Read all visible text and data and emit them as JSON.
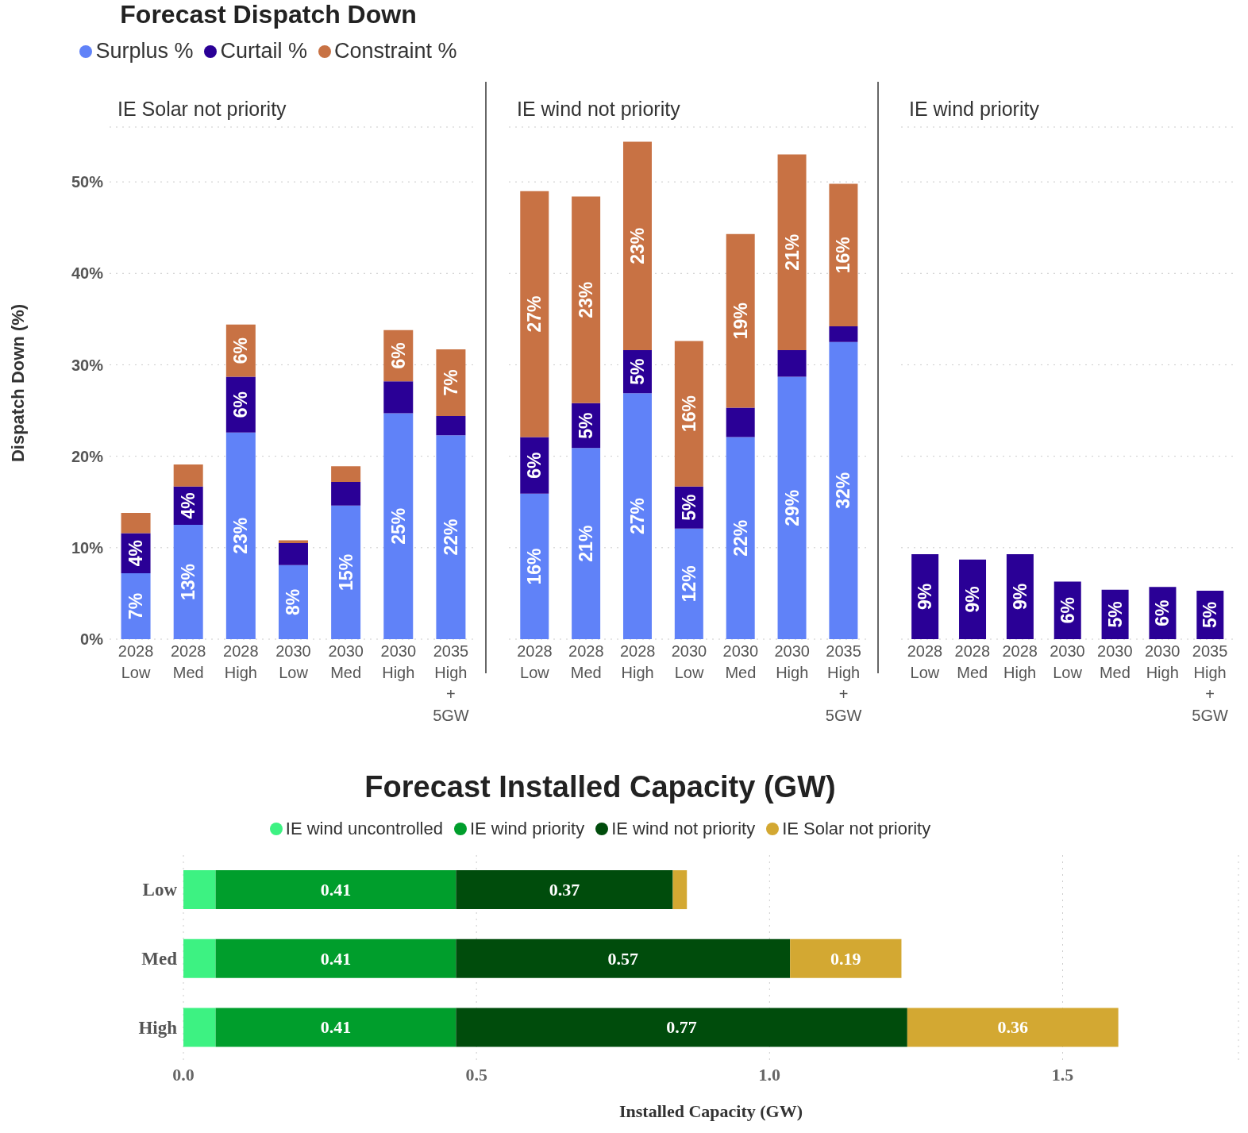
{
  "chart_data": [
    {
      "type": "bar",
      "title": "Forecast Dispatch Down",
      "subtitle": "IE Solar not priority",
      "ylabel": "Dispatch Down (%)",
      "stacked": true,
      "legend": "top",
      "grid": "y",
      "categories": [
        "2028 Low",
        "2028 Med",
        "2028 High",
        "2030 Low",
        "2030 Med",
        "2030 High",
        "2035 High + 5GW"
      ],
      "ylim": [
        0,
        56
      ],
      "yticks": [
        {
          "value": 0,
          "label": "0%"
        },
        {
          "value": 10,
          "label": "10%"
        },
        {
          "value": 20,
          "label": "20%"
        },
        {
          "value": 30,
          "label": "30%"
        },
        {
          "value": 40,
          "label": "40%"
        },
        {
          "value": 50,
          "label": "50%"
        }
      ],
      "series": [
        {
          "name": "Surplus %",
          "color": "#6082f8",
          "values": [
            7.2,
            12.5,
            22.6,
            8.1,
            14.6,
            24.7,
            22.3
          ],
          "value_labels": [
            "7%",
            "13%",
            "23%",
            "8%",
            "15%",
            "25%",
            "22%"
          ]
        },
        {
          "name": "Curtail %",
          "color": "#2a0096",
          "values": [
            4.4,
            4.2,
            6.1,
            2.4,
            2.6,
            3.5,
            2.1
          ],
          "value_labels": [
            "4%",
            "4%",
            "6%",
            null,
            null,
            null,
            null
          ]
        },
        {
          "name": "Constraint %",
          "color": "#c87244",
          "values": [
            2.2,
            2.4,
            5.7,
            0.3,
            1.7,
            5.6,
            7.3
          ],
          "value_labels": [
            null,
            null,
            "6%",
            null,
            null,
            "6%",
            "7%"
          ]
        }
      ]
    },
    {
      "type": "bar",
      "subtitle": "IE wind not priority",
      "stacked": true,
      "grid": "y",
      "tick_labels": "x",
      "categories": [
        "2028 Low",
        "2028 Med",
        "2028 High",
        "2030 Low",
        "2030 Med",
        "2030 High",
        "2035 High + 5GW"
      ],
      "ylim": [
        0,
        56
      ],
      "yticks": [
        0,
        10,
        20,
        30,
        40,
        50
      ],
      "series": [
        {
          "color": "#6082f8",
          "values": [
            15.9,
            20.9,
            26.9,
            12.1,
            22.1,
            28.7,
            32.5
          ],
          "value_labels": [
            "16%",
            "21%",
            "27%",
            "12%",
            "22%",
            "29%",
            "32%"
          ]
        },
        {
          "color": "#2a0096",
          "values": [
            6.2,
            4.9,
            4.7,
            4.6,
            3.2,
            2.9,
            1.7
          ],
          "value_labels": [
            "6%",
            "5%",
            "5%",
            "5%",
            null,
            null,
            null
          ]
        },
        {
          "color": "#c87244",
          "values": [
            26.9,
            22.6,
            22.8,
            15.9,
            19.0,
            21.4,
            15.6
          ],
          "value_labels": [
            "27%",
            "23%",
            "23%",
            "16%",
            "19%",
            "21%",
            "16%"
          ]
        }
      ]
    },
    {
      "type": "bar",
      "subtitle": "IE wind priority",
      "stacked": true,
      "grid": "y",
      "tick_labels": "x",
      "categories": [
        "2028 Low",
        "2028 Med",
        "2028 High",
        "2030 Low",
        "2030 Med",
        "2030 High",
        "2035 High + 5GW"
      ],
      "ylim": [
        0,
        56
      ],
      "yticks": [
        0,
        10,
        20,
        30,
        40,
        50
      ],
      "series": [
        {
          "color": "#2a0096",
          "values": [
            9.3,
            8.7,
            9.3,
            6.3,
            5.4,
            5.7,
            5.3
          ],
          "value_labels": [
            "9%",
            "9%",
            "9%",
            "6%",
            "5%",
            "6%",
            "5%"
          ]
        }
      ]
    },
    {
      "type": "bar",
      "title": "Forecast Installed Capacity (GW)",
      "xlabel": "Installed Capacity (GW)",
      "orientation": "horizontal",
      "stacked": true,
      "legend": "top",
      "grid": "x",
      "categories": [
        "Low",
        "Med",
        "High"
      ],
      "xlim": [
        0,
        1.8
      ],
      "xticks": [
        {
          "value": 0,
          "label": "0.0"
        },
        {
          "value": 0.5,
          "label": "0.5"
        },
        {
          "value": 1,
          "label": "1.0"
        },
        {
          "value": 1.5,
          "label": "1.5"
        }
      ],
      "series": [
        {
          "name": "IE wind uncontrolled",
          "color": "#3df282",
          "values": [
            0.055,
            0.055,
            0.055
          ],
          "value_labels": [
            null,
            null,
            null
          ]
        },
        {
          "name": "IE wind priority",
          "color": "#009e2c",
          "values": [
            0.41,
            0.41,
            0.41
          ],
          "value_labels": [
            "0.41",
            "0.41",
            "0.41"
          ]
        },
        {
          "name": "IE wind not priority",
          "color": "#004c0c",
          "values": [
            0.37,
            0.57,
            0.77
          ],
          "value_labels": [
            "0.37",
            "0.57",
            "0.77"
          ]
        },
        {
          "name": "IE Solar not priority",
          "color": "#d3a832",
          "values": [
            0.024,
            0.19,
            0.36
          ],
          "value_labels": [
            null,
            "0.19",
            "0.36"
          ]
        }
      ]
    }
  ]
}
